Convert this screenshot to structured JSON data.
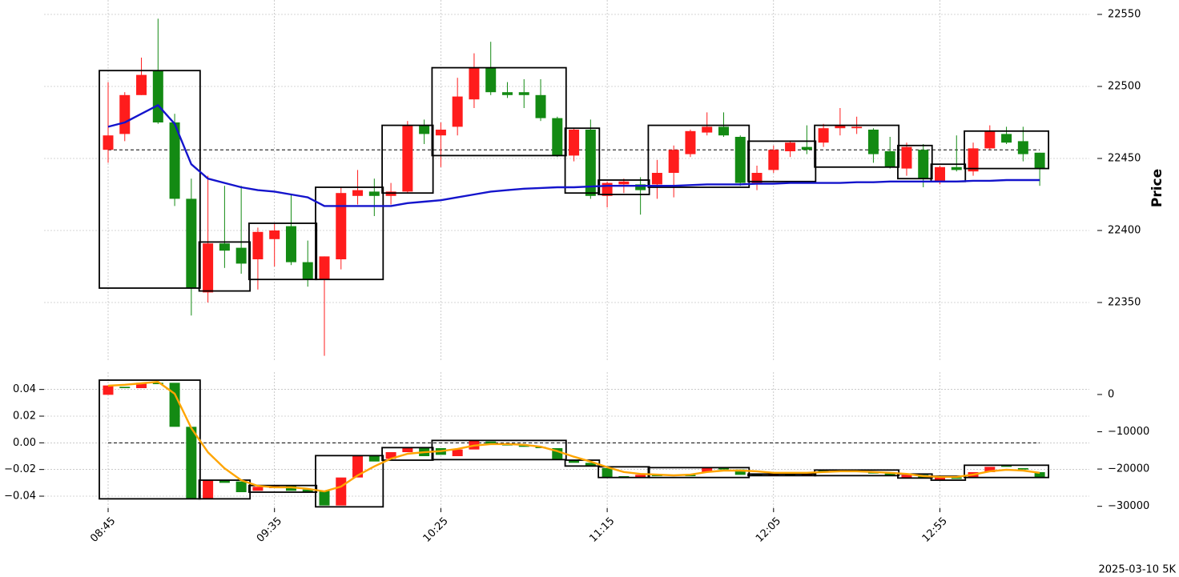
{
  "chart_data": [
    {
      "type": "candlestick",
      "ylabel": "Price",
      "annotation": "2025-03-10 5K",
      "y_axis_side": "right",
      "up_color": "#ff1c1c",
      "down_color": "#138a13",
      "grid": true,
      "ylim": [
        22310,
        22560
      ],
      "yticks": [
        22350,
        22400,
        22450,
        22500,
        22550
      ],
      "reference_line": 22456,
      "open": [
        22456,
        22467,
        22494,
        22511,
        22475,
        22422,
        22357,
        22391,
        22388,
        22380,
        22394,
        22403,
        22378,
        22366,
        22380,
        22424,
        22427,
        22424,
        22427,
        22473,
        22466,
        22472,
        22491,
        22513,
        22496,
        22496,
        22494,
        22478,
        22452,
        22470,
        22424,
        22432,
        22432,
        22432,
        22440,
        22453,
        22468,
        22472,
        22465,
        22433,
        22442,
        22455,
        22458,
        22461,
        22471,
        22471,
        22470,
        22455,
        22443,
        22456,
        22434,
        22444,
        22441,
        22457,
        22467,
        22462,
        22454
      ],
      "high": [
        22503,
        22496,
        22520,
        22547,
        22481,
        22436,
        22438,
        22431,
        22431,
        22402,
        22405,
        22425,
        22393,
        22382,
        22430,
        22442,
        22436,
        22433,
        22476,
        22477,
        22475,
        22506,
        22523,
        22531,
        22503,
        22505,
        22505,
        22479,
        22471,
        22477,
        22434,
        22436,
        22437,
        22449,
        22459,
        22470,
        22482,
        22482,
        22466,
        22445,
        22459,
        22462,
        22473,
        22474,
        22485,
        22479,
        22471,
        22465,
        22461,
        22460,
        22445,
        22466,
        22461,
        22473,
        22472,
        22472,
        22454
      ],
      "low": [
        22447,
        22462,
        22494,
        22474,
        22417,
        22341,
        22350,
        22374,
        22370,
        22359,
        22375,
        22376,
        22361,
        22313,
        22373,
        22418,
        22410,
        22418,
        22426,
        22460,
        22444,
        22466,
        22485,
        22494,
        22492,
        22485,
        22476,
        22451,
        22448,
        22422,
        22416,
        22426,
        22411,
        22422,
        22423,
        22451,
        22466,
        22465,
        22431,
        22428,
        22440,
        22451,
        22453,
        22458,
        22466,
        22467,
        22447,
        22443,
        22438,
        22430,
        22432,
        22441,
        22438,
        22456,
        22460,
        22448,
        22431
      ],
      "close": [
        22466,
        22494,
        22508,
        22475,
        22422,
        22360,
        22391,
        22386,
        22377,
        22399,
        22400,
        22378,
        22366,
        22382,
        22426,
        22428,
        22424,
        22427,
        22473,
        22467,
        22470,
        22493,
        22513,
        22496,
        22494,
        22494,
        22478,
        22452,
        22470,
        22424,
        22433,
        22434,
        22428,
        22440,
        22456,
        22469,
        22472,
        22466,
        22433,
        22440,
        22456,
        22461,
        22456,
        22471,
        22473,
        22472,
        22453,
        22444,
        22458,
        22436,
        22444,
        22442,
        22457,
        22469,
        22461,
        22453,
        22443
      ],
      "series": [
        {
          "color": "#1414cc",
          "values": [
            22472,
            22475,
            22481,
            22487,
            22474,
            22446,
            22436,
            22433,
            22430,
            22428,
            22427,
            22425,
            22423,
            22417,
            22417,
            22417,
            22417,
            22417,
            22419,
            22420,
            22421,
            22423,
            22425,
            22427,
            22428,
            22429,
            22429.5,
            22430,
            22430,
            22430.5,
            22431,
            22431,
            22431,
            22431,
            22431,
            22431.5,
            22432,
            22432,
            22432,
            22432.5,
            22432.5,
            22433,
            22433,
            22433,
            22433,
            22433.5,
            22433.5,
            22434,
            22434,
            22434,
            22434,
            22434,
            22434.5,
            22434.5,
            22435,
            22435,
            22435
          ]
        }
      ],
      "boxes": [
        {
          "from": 0,
          "to": 5,
          "top": 22511,
          "bottom": 22360
        },
        {
          "from": 6,
          "to": 8,
          "top": 22392,
          "bottom": 22358
        },
        {
          "from": 9,
          "to": 12,
          "top": 22405,
          "bottom": 22366
        },
        {
          "from": 13,
          "to": 16,
          "top": 22430,
          "bottom": 22366
        },
        {
          "from": 17,
          "to": 19,
          "top": 22473,
          "bottom": 22426
        },
        {
          "from": 20,
          "to": 27,
          "top": 22513,
          "bottom": 22452
        },
        {
          "from": 28,
          "to": 29,
          "top": 22471,
          "bottom": 22426
        },
        {
          "from": 30,
          "to": 32,
          "top": 22435,
          "bottom": 22425
        },
        {
          "from": 33,
          "to": 38,
          "top": 22473,
          "bottom": 22430
        },
        {
          "from": 39,
          "to": 42,
          "top": 22462,
          "bottom": 22434
        },
        {
          "from": 43,
          "to": 47,
          "top": 22473,
          "bottom": 22444
        },
        {
          "from": 48,
          "to": 49,
          "top": 22459,
          "bottom": 22436
        },
        {
          "from": 50,
          "to": 51,
          "top": 22446,
          "bottom": 22434
        },
        {
          "from": 52,
          "to": 56,
          "top": 22469,
          "bottom": 22443
        }
      ]
    },
    {
      "type": "candlestick",
      "y_axis_side": "left",
      "up_color": "#ff1c1c",
      "down_color": "#138a13",
      "grid": true,
      "categories": [
        "08:45",
        null,
        null,
        null,
        null,
        null,
        null,
        null,
        null,
        null,
        "09:35",
        null,
        null,
        null,
        null,
        null,
        null,
        null,
        null,
        null,
        "10:25",
        null,
        null,
        null,
        null,
        null,
        null,
        null,
        null,
        null,
        "11:15",
        null,
        null,
        null,
        null,
        null,
        null,
        null,
        null,
        null,
        "12:05",
        null,
        null,
        null,
        null,
        null,
        null,
        null,
        null,
        null,
        "12:55",
        null,
        null,
        null,
        null,
        null,
        null
      ],
      "ylim": [
        -0.049,
        0.053
      ],
      "yticks": [
        {
          "value": -0.04,
          "label": "−0.04"
        },
        {
          "value": -0.02,
          "label": "−0.02"
        },
        {
          "value": 0,
          "label": "0.00"
        },
        0.02,
        0.04
      ],
      "y2lim": [
        -30500,
        6000
      ],
      "y2ticks": [
        {
          "value": -30000,
          "label": "−30000"
        },
        {
          "value": -20000,
          "label": "−20000"
        },
        {
          "value": -10000,
          "label": "−10000"
        },
        0
      ],
      "reference_line": 0,
      "open": [
        0.036,
        0.042,
        0.041,
        0.045,
        0.045,
        0.012,
        -0.042,
        -0.028,
        -0.029,
        -0.036,
        -0.034,
        -0.032,
        -0.035,
        -0.036,
        -0.047,
        -0.026,
        -0.01,
        -0.012,
        -0.007,
        -0.004,
        -0.004,
        -0.01,
        -0.005,
        0.001,
        -0.001,
        -0.002,
        -0.003,
        -0.004,
        -0.013,
        -0.015,
        -0.019,
        -0.025,
        -0.026,
        -0.024,
        -0.025,
        -0.024,
        -0.022,
        -0.019,
        -0.02,
        -0.0236,
        -0.0244,
        -0.0238,
        -0.0244,
        -0.0206,
        -0.0214,
        -0.021,
        -0.022,
        -0.023,
        -0.0264,
        -0.024,
        -0.028,
        -0.026,
        -0.026,
        -0.022,
        -0.017,
        -0.019,
        -0.022
      ],
      "close": [
        0.043,
        0.041,
        0.045,
        0.044,
        0.012,
        -0.042,
        -0.028,
        -0.03,
        -0.037,
        -0.033,
        -0.032,
        -0.036,
        -0.037,
        -0.047,
        -0.026,
        -0.01,
        -0.014,
        -0.007,
        -0.004,
        -0.01,
        -0.009,
        -0.005,
        0.002,
        -0.001,
        -0.002,
        -0.003,
        -0.004,
        -0.013,
        -0.015,
        -0.017,
        -0.026,
        -0.026,
        -0.024,
        -0.025,
        -0.024,
        -0.025,
        -0.019,
        -0.02,
        -0.024,
        -0.0244,
        -0.0238,
        -0.0244,
        -0.0238,
        -0.0214,
        -0.0206,
        -0.022,
        -0.023,
        -0.0244,
        -0.024,
        -0.026,
        -0.026,
        -0.027,
        -0.022,
        -0.018,
        -0.018,
        -0.02,
        -0.026
      ],
      "series": [
        {
          "color": "#ffa500",
          "axis": "y2",
          "values": [
            2360,
            2600,
            3000,
            3400,
            200,
            -9000,
            -15500,
            -19800,
            -23000,
            -24500,
            -24900,
            -24900,
            -25300,
            -26000,
            -24700,
            -21700,
            -19300,
            -17200,
            -15900,
            -15500,
            -15200,
            -14600,
            -13700,
            -13300,
            -13300,
            -13500,
            -14000,
            -15200,
            -16700,
            -18000,
            -19500,
            -20800,
            -21300,
            -21500,
            -21700,
            -21500,
            -20800,
            -20400,
            -20400,
            -20600,
            -21000,
            -21000,
            -21000,
            -20800,
            -20600,
            -20600,
            -20800,
            -21000,
            -21300,
            -21900,
            -22100,
            -22100,
            -21500,
            -20600,
            -20200,
            -20400,
            -21000
          ]
        }
      ],
      "boxes": [
        {
          "from": 0,
          "to": 5,
          "top": 0.047,
          "bottom": -0.042
        },
        {
          "from": 6,
          "to": 8,
          "top": -0.028,
          "bottom": -0.042
        },
        {
          "from": 9,
          "to": 12,
          "top": -0.032,
          "bottom": -0.037
        },
        {
          "from": 13,
          "to": 16,
          "top": -0.0096,
          "bottom": -0.048
        },
        {
          "from": 17,
          "to": 19,
          "top": -0.0036,
          "bottom": -0.013
        },
        {
          "from": 20,
          "to": 27,
          "top": 0.0018,
          "bottom": -0.0126
        },
        {
          "from": 28,
          "to": 29,
          "top": -0.013,
          "bottom": -0.0174
        },
        {
          "from": 30,
          "to": 32,
          "top": -0.018,
          "bottom": -0.026
        },
        {
          "from": 33,
          "to": 38,
          "top": -0.0186,
          "bottom": -0.026
        },
        {
          "from": 39,
          "to": 42,
          "top": -0.0234,
          "bottom": -0.0246
        },
        {
          "from": 43,
          "to": 47,
          "top": -0.0204,
          "bottom": -0.0246
        },
        {
          "from": 48,
          "to": 49,
          "top": -0.0234,
          "bottom": -0.0264
        },
        {
          "from": 50,
          "to": 51,
          "top": -0.025,
          "bottom": -0.028
        },
        {
          "from": 52,
          "to": 56,
          "top": -0.0168,
          "bottom": -0.026
        }
      ]
    }
  ]
}
